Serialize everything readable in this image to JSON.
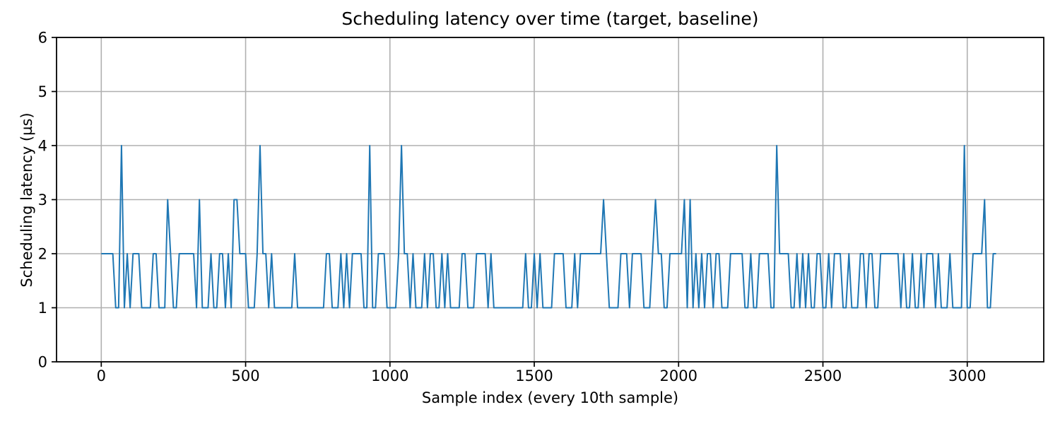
{
  "figure": {
    "title": "Scheduling latency over time (target, baseline)"
  },
  "chart_data": {
    "type": "line",
    "title": "Scheduling latency over time (target, baseline)",
    "xlabel": "Sample index (every 10th sample)",
    "ylabel": "Scheduling latency (µs)",
    "xlim": [
      -155,
      3265
    ],
    "ylim": [
      0,
      6
    ],
    "xticks": [
      0,
      500,
      1000,
      1500,
      2000,
      2500,
      3000
    ],
    "yticks": [
      0,
      1,
      2,
      3,
      4,
      5,
      6
    ],
    "grid": true,
    "legend_position": "none",
    "line_color": "#1f77b4",
    "grid_color": "#b0b0b0",
    "spine_color": "#000000",
    "series": [
      {
        "name": "target_baseline",
        "x_start": 0,
        "x_end": 3100,
        "x_step": 10,
        "baseline_value": 2,
        "dip_value": 1,
        "dips_x": [
          50,
          60,
          80,
          100,
          140,
          150,
          160,
          170,
          200,
          210,
          220,
          250,
          260,
          330,
          350,
          360,
          370,
          390,
          400,
          430,
          450,
          510,
          520,
          530,
          580,
          600,
          610,
          620,
          630,
          640,
          650,
          660,
          680,
          690,
          700,
          710,
          720,
          730,
          740,
          750,
          760,
          770,
          800,
          810,
          820,
          840,
          860,
          910,
          920,
          940,
          950,
          990,
          1000,
          1010,
          1020,
          1070,
          1090,
          1100,
          1110,
          1130,
          1160,
          1170,
          1190,
          1210,
          1220,
          1230,
          1240,
          1270,
          1280,
          1290,
          1340,
          1360,
          1370,
          1380,
          1390,
          1400,
          1410,
          1420,
          1430,
          1440,
          1450,
          1460,
          1480,
          1490,
          1510,
          1530,
          1540,
          1550,
          1560,
          1610,
          1620,
          1630,
          1650,
          1760,
          1770,
          1780,
          1790,
          1830,
          1880,
          1890,
          1900,
          1950,
          1960,
          2030,
          2050,
          2070,
          2090,
          2120,
          2150,
          2160,
          2170,
          2230,
          2240,
          2260,
          2270,
          2320,
          2330,
          2390,
          2400,
          2420,
          2440,
          2460,
          2470,
          2500,
          2510,
          2530,
          2570,
          2580,
          2600,
          2610,
          2620,
          2650,
          2680,
          2690,
          2770,
          2790,
          2800,
          2820,
          2830,
          2850,
          2890,
          2910,
          2920,
          2930,
          2950,
          2960,
          2970,
          2980,
          3000,
          3010,
          3070,
          3080
        ],
        "spikes": [
          [
            70,
            4
          ],
          [
            230,
            3
          ],
          [
            340,
            3
          ],
          [
            460,
            3
          ],
          [
            470,
            3
          ],
          [
            550,
            4
          ],
          [
            930,
            4
          ],
          [
            1040,
            4
          ],
          [
            1740,
            3
          ],
          [
            1920,
            3
          ],
          [
            2020,
            3
          ],
          [
            2040,
            3
          ],
          [
            2340,
            4
          ],
          [
            2990,
            4
          ],
          [
            3060,
            3
          ]
        ]
      }
    ]
  }
}
